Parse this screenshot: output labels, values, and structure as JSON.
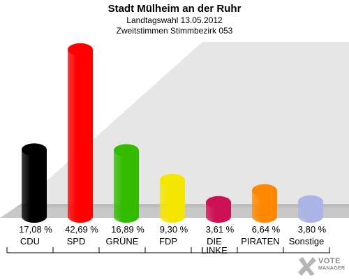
{
  "header": {
    "title": "Stadt Mülheim an der Ruhr",
    "subtitle1": "Landtagswahl 13.05.2012",
    "subtitle2": "Zweitstimmen Stimmbezirk 053"
  },
  "watermark": {
    "line1": "VOTE",
    "line2": "MANAGER"
  },
  "chart_data": {
    "type": "bar",
    "title": "Stadt Mülheim an der Ruhr",
    "subtitle": "Landtagswahl 13.05.2012 / Zweitstimmen Stimmbezirk 053",
    "categories": [
      "CDU",
      "SPD",
      "GRÜNE",
      "FDP",
      "DIE LINKE",
      "PIRATEN",
      "Sonstige"
    ],
    "values": [
      17.08,
      42.69,
      16.89,
      9.3,
      3.61,
      6.64,
      3.8
    ],
    "value_labels": [
      "17,08 %",
      "42,69 %",
      "16,89 %",
      "9,30 %",
      "3,61 %",
      "6,64 %",
      "3,80 %"
    ],
    "colors": [
      "#000000",
      "#ff0000",
      "#33bb00",
      "#f5e600",
      "#cc1155",
      "#ff8800",
      "#aab4e6"
    ],
    "ylim": [
      0,
      45
    ],
    "grid": false,
    "legend": "none"
  }
}
